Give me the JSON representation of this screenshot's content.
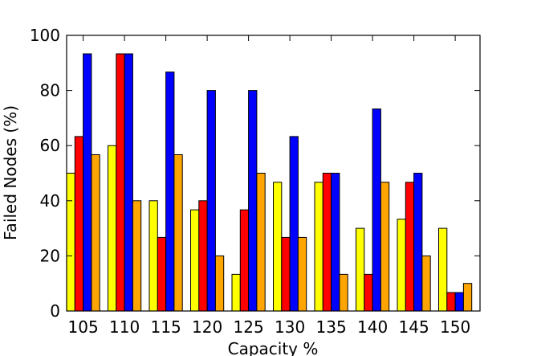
{
  "chart_data": {
    "type": "bar",
    "title": "",
    "xlabel": "Capacity %",
    "ylabel": "Failed Nodes (%)",
    "ylim": [
      0,
      100
    ],
    "yticks": [
      0,
      20,
      40,
      60,
      80,
      100
    ],
    "grid": false,
    "categories": [
      "105",
      "110",
      "115",
      "120",
      "125",
      "130",
      "135",
      "140",
      "145",
      "150"
    ],
    "series": [
      {
        "color": "#ffff00",
        "values": [
          50,
          60,
          40,
          36.7,
          13.3,
          46.7,
          46.7,
          30,
          33.3,
          30
        ]
      },
      {
        "color": "#ff0000",
        "values": [
          63.3,
          93.3,
          26.7,
          40,
          36.7,
          26.7,
          50,
          13.3,
          46.7,
          6.7
        ]
      },
      {
        "color": "#0000ff",
        "values": [
          93.3,
          93.3,
          86.7,
          80,
          80,
          63.3,
          50,
          73.3,
          50,
          6.7
        ]
      },
      {
        "color": "#ffa500",
        "values": [
          56.7,
          40,
          56.7,
          20,
          50,
          26.7,
          13.3,
          46.7,
          20,
          10
        ]
      }
    ]
  }
}
